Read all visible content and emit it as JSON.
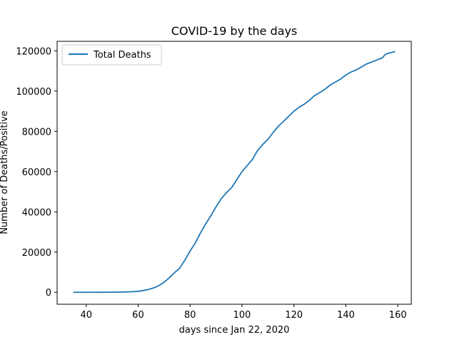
{
  "chart_data": {
    "type": "line",
    "title": "COVID-19 by the days",
    "xlabel": "days since Jan 22, 2020",
    "ylabel": "Number of Deaths/Positive",
    "xlim": [
      28.8,
      165.2
    ],
    "ylim": [
      -5940,
      124740
    ],
    "xticks": [
      40,
      60,
      80,
      100,
      120,
      140,
      160
    ],
    "yticks": [
      0,
      20000,
      40000,
      60000,
      80000,
      100000,
      120000
    ],
    "grid": false,
    "legend_position": "upper-left",
    "colors": {
      "series": "#1f77b4",
      "axes": "#000000",
      "legend_border": "#cccccc"
    },
    "series": [
      {
        "name": "Total Deaths",
        "x": [
          35,
          40,
          45,
          50,
          55,
          58,
          60,
          62,
          64,
          66,
          68,
          70,
          72,
          74,
          76,
          78,
          80,
          82,
          84,
          86,
          88,
          90,
          92,
          94,
          96,
          98,
          100,
          102,
          104,
          106,
          108,
          110,
          112,
          114,
          116,
          118,
          120,
          122,
          124,
          126,
          128,
          130,
          132,
          134,
          136,
          138,
          140,
          142,
          144,
          146,
          148,
          150,
          152,
          154,
          155,
          156,
          158,
          159
        ],
        "values": [
          0,
          0,
          10,
          50,
          150,
          300,
          500,
          900,
          1400,
          2200,
          3300,
          5000,
          7200,
          9700,
          12000,
          16000,
          20500,
          24500,
          29500,
          34000,
          38000,
          42500,
          46500,
          49500,
          52000,
          56000,
          60000,
          63000,
          66000,
          70500,
          73500,
          76000,
          79500,
          82500,
          85000,
          87500,
          90000,
          92000,
          93500,
          95500,
          97800,
          99300,
          101000,
          103000,
          104500,
          106000,
          108000,
          109500,
          110500,
          112000,
          113500,
          114500,
          115500,
          116500,
          118000,
          118700,
          119300,
          119700
        ]
      }
    ]
  }
}
